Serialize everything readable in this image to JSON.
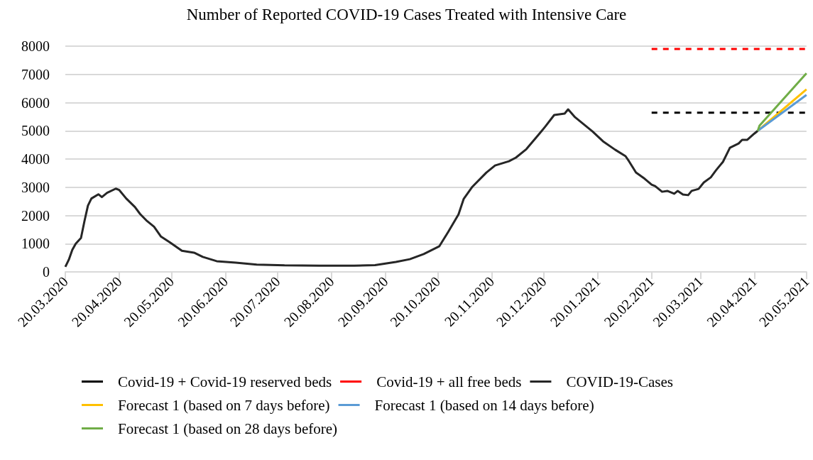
{
  "chart_data": {
    "type": "line",
    "title": "Number of Reported COVID-19 Cases Treated with Intensive Care",
    "xlim": [
      "2020-03-20",
      "2021-05-20"
    ],
    "xticks": [
      {
        "value": "2020-03-20",
        "label": "20.03.2020"
      },
      {
        "value": "2020-04-20",
        "label": "20.04.2020"
      },
      {
        "value": "2020-05-20",
        "label": "20.05.2020"
      },
      {
        "value": "2020-06-20",
        "label": "20.06.2020"
      },
      {
        "value": "2020-07-20",
        "label": "20.07.2020"
      },
      {
        "value": "2020-08-20",
        "label": "20.08.2020"
      },
      {
        "value": "2020-09-20",
        "label": "20.09.2020"
      },
      {
        "value": "2020-10-20",
        "label": "20.10.2020"
      },
      {
        "value": "2020-11-20",
        "label": "20.11.2020"
      },
      {
        "value": "2020-12-20",
        "label": "20.12.2020"
      },
      {
        "value": "2021-01-20",
        "label": "20.01.2021"
      },
      {
        "value": "2021-02-20",
        "label": "20.02.2021"
      },
      {
        "value": "2021-03-20",
        "label": "20.03.2021"
      },
      {
        "value": "2021-04-20",
        "label": "20.04.2021"
      },
      {
        "value": "2021-05-20",
        "label": "20.05.2021"
      }
    ],
    "ylim": [
      0,
      8000
    ],
    "yticks": [
      0,
      1000,
      2000,
      3000,
      4000,
      5000,
      6000,
      7000,
      8000
    ],
    "grid": "y",
    "legend": "bottom",
    "marker": "none",
    "series": [
      {
        "name": "Covid-19 + Covid-19 reserved beds",
        "color": "#000000",
        "line_style": "dashed",
        "x": [
          "2021-02-20",
          "2021-05-20"
        ],
        "values": [
          5640,
          5640
        ]
      },
      {
        "name": "Covid-19 + all free beds",
        "color": "#ff0000",
        "line_style": "dashed",
        "x": [
          "2021-02-20",
          "2021-05-20"
        ],
        "values": [
          7900,
          7900
        ]
      },
      {
        "name": "COVID-19-Cases",
        "color": "#262626",
        "line_style": "solid",
        "x": [
          "2020-03-20",
          "2020-03-22",
          "2020-03-24",
          "2020-03-26",
          "2020-03-29",
          "2020-03-31",
          "2020-04-02",
          "2020-04-04",
          "2020-04-08",
          "2020-04-10",
          "2020-04-13",
          "2020-04-18",
          "2020-04-20",
          "2020-04-24",
          "2020-04-29",
          "2020-05-02",
          "2020-05-06",
          "2020-05-10",
          "2020-05-14",
          "2020-05-19",
          "2020-05-26",
          "2020-06-02",
          "2020-06-07",
          "2020-06-15",
          "2020-06-26",
          "2020-07-08",
          "2020-07-24",
          "2020-08-13",
          "2020-09-02",
          "2020-09-14",
          "2020-09-26",
          "2020-10-04",
          "2020-10-12",
          "2020-10-21",
          "2020-10-26",
          "2020-11-01",
          "2020-11-04",
          "2020-11-09",
          "2020-11-17",
          "2020-11-22",
          "2020-11-30",
          "2020-12-04",
          "2020-12-10",
          "2020-12-17",
          "2020-12-21",
          "2020-12-26",
          "2021-01-01",
          "2021-01-03",
          "2021-01-07",
          "2021-01-17",
          "2021-01-23",
          "2021-01-30",
          "2021-02-05",
          "2021-02-07",
          "2021-02-11",
          "2021-02-16",
          "2021-02-20",
          "2021-02-22",
          "2021-02-26",
          "2021-03-01",
          "2021-03-05",
          "2021-03-07",
          "2021-03-10",
          "2021-03-13",
          "2021-03-15",
          "2021-03-19",
          "2021-03-22",
          "2021-03-26",
          "2021-03-29",
          "2021-04-02",
          "2021-04-06",
          "2021-04-11",
          "2021-04-13",
          "2021-04-16",
          "2021-04-20",
          "2021-04-22"
        ],
        "values": [
          180,
          430,
          780,
          1000,
          1200,
          1800,
          2350,
          2600,
          2750,
          2650,
          2800,
          2950,
          2900,
          2600,
          2300,
          2050,
          1800,
          1600,
          1250,
          1050,
          750,
          680,
          530,
          380,
          330,
          260,
          230,
          220,
          220,
          240,
          350,
          450,
          630,
          910,
          1410,
          2040,
          2590,
          3020,
          3520,
          3770,
          3920,
          4050,
          4350,
          4860,
          5160,
          5560,
          5610,
          5760,
          5480,
          4980,
          4630,
          4330,
          4100,
          3920,
          3520,
          3300,
          3090,
          3040,
          2840,
          2870,
          2770,
          2870,
          2740,
          2720,
          2870,
          2940,
          3170,
          3350,
          3600,
          3900,
          4400,
          4550,
          4680,
          4680,
          4900,
          5000
        ]
      },
      {
        "name": "Forecast 1 (based on 7 days before)",
        "color": "#ffc000",
        "line_style": "solid",
        "x": [
          "2021-04-22",
          "2021-05-20"
        ],
        "values": [
          5000,
          6470
        ]
      },
      {
        "name": "Forecast 1 (based on 14 days before)",
        "color": "#5b9bd5",
        "line_style": "solid",
        "x": [
          "2021-04-22",
          "2021-05-20"
        ],
        "values": [
          5000,
          6270
        ]
      },
      {
        "name": "Forecast 1 (based on 28 days before)",
        "color": "#70ad47",
        "line_style": "solid",
        "x": [
          "2021-04-22",
          "2021-04-23",
          "2021-05-20"
        ],
        "values": [
          5000,
          5180,
          7040
        ]
      }
    ]
  }
}
